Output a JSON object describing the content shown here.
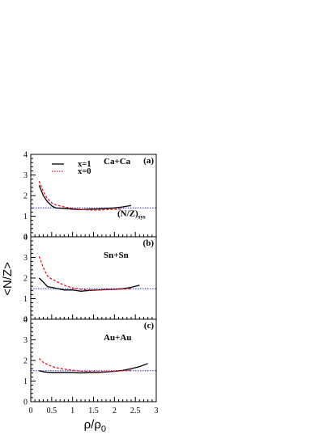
{
  "chart_data": {
    "type": "line",
    "ylabel": "<N/Z>",
    "xlabel": "ρ/ρ",
    "xlabel_sub": "0",
    "xlim": [
      0,
      3
    ],
    "ylim": [
      0,
      4
    ],
    "xticks": [
      "0",
      "0.5",
      "1",
      "1.5",
      "2",
      "2.5",
      "3"
    ],
    "yticks": [
      "0",
      "1",
      "2",
      "3",
      "4"
    ],
    "legend": [
      {
        "label": "x=1",
        "style": "solid",
        "color": "#000000"
      },
      {
        "label": "x=0",
        "style": "dashed",
        "color": "#e8141c"
      }
    ],
    "reference_label": "(N/Z)",
    "reference_label_sub": "sys",
    "panels": [
      {
        "tag": "(a)",
        "system": "Ca+Ca",
        "reference_value": 1.4,
        "series": [
          {
            "name": "x=1",
            "x": [
              0.2,
              0.3,
              0.4,
              0.5,
              0.6,
              0.8,
              1.0,
              1.2,
              1.4,
              1.6,
              1.8,
              2.0,
              2.2,
              2.4
            ],
            "y": [
              2.5,
              2.0,
              1.7,
              1.5,
              1.4,
              1.38,
              1.34,
              1.32,
              1.34,
              1.35,
              1.38,
              1.4,
              1.45,
              1.52
            ]
          },
          {
            "name": "x=0",
            "x": [
              0.2,
              0.3,
              0.4,
              0.5,
              0.6,
              0.8,
              1.0,
              1.2,
              1.4,
              1.6,
              1.8,
              2.0,
              2.2
            ],
            "y": [
              2.7,
              2.2,
              1.85,
              1.65,
              1.55,
              1.45,
              1.38,
              1.33,
              1.3,
              1.3,
              1.32,
              1.33,
              1.35
            ]
          }
        ]
      },
      {
        "tag": "(b)",
        "system": "Sn+Sn",
        "reference_value": 1.48,
        "series": [
          {
            "name": "x=1",
            "x": [
              0.2,
              0.3,
              0.4,
              0.5,
              0.6,
              0.8,
              1.0,
              1.2,
              1.4,
              1.6,
              1.8,
              2.0,
              2.2,
              2.4,
              2.6
            ],
            "y": [
              2.0,
              1.8,
              1.58,
              1.55,
              1.5,
              1.42,
              1.42,
              1.36,
              1.4,
              1.42,
              1.44,
              1.45,
              1.48,
              1.55,
              1.65
            ]
          },
          {
            "name": "x=0",
            "x": [
              0.2,
              0.3,
              0.4,
              0.5,
              0.6,
              0.8,
              1.0,
              1.2,
              1.4,
              1.6,
              1.8,
              2.0,
              2.2,
              2.4
            ],
            "y": [
              3.05,
              2.5,
              2.1,
              1.95,
              1.85,
              1.65,
              1.52,
              1.45,
              1.42,
              1.42,
              1.43,
              1.45,
              1.46,
              1.48
            ]
          }
        ]
      },
      {
        "tag": "(c)",
        "system": "Au+Au",
        "reference_value": 1.5,
        "series": [
          {
            "name": "x=1",
            "x": [
              0.2,
              0.3,
              0.4,
              0.5,
              0.6,
              0.8,
              1.0,
              1.2,
              1.4,
              1.6,
              1.8,
              2.0,
              2.2,
              2.4,
              2.6,
              2.8
            ],
            "y": [
              1.5,
              1.45,
              1.43,
              1.42,
              1.42,
              1.42,
              1.42,
              1.4,
              1.42,
              1.42,
              1.44,
              1.47,
              1.52,
              1.6,
              1.7,
              1.85
            ]
          },
          {
            "name": "x=0",
            "x": [
              0.2,
              0.3,
              0.4,
              0.5,
              0.6,
              0.8,
              1.0,
              1.2,
              1.4,
              1.6,
              1.8,
              2.0,
              2.2,
              2.4
            ],
            "y": [
              2.1,
              1.9,
              1.8,
              1.72,
              1.65,
              1.58,
              1.52,
              1.48,
              1.46,
              1.45,
              1.46,
              1.47,
              1.5,
              1.52
            ]
          }
        ]
      }
    ]
  }
}
